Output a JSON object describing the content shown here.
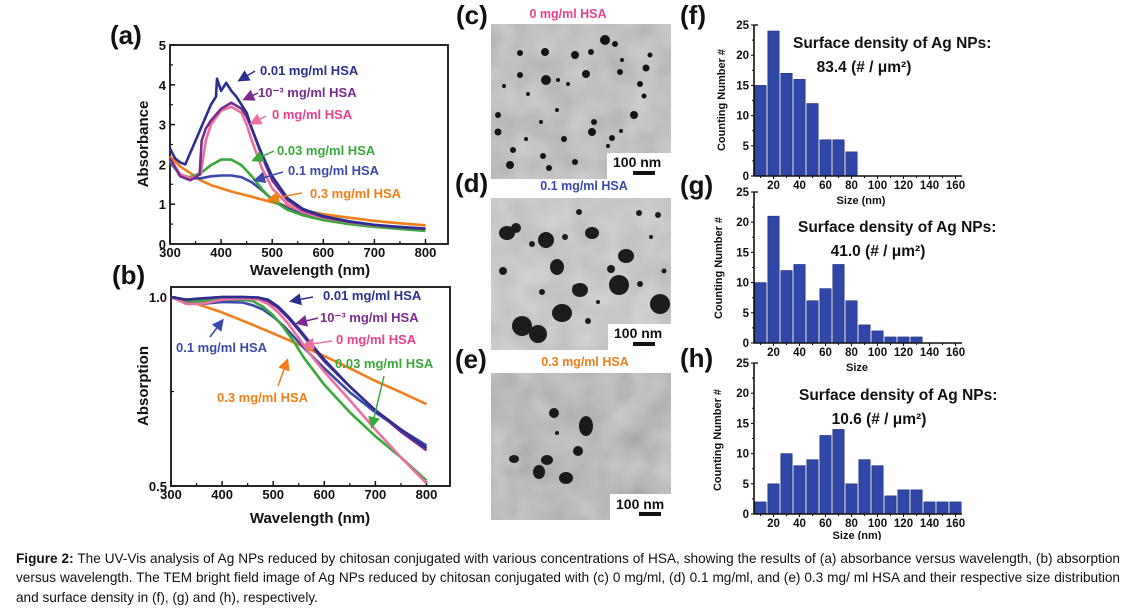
{
  "figure": {
    "caption_label": "Figure 2:",
    "caption_text": " The UV-Vis analysis of Ag NPs reduced by chitosan conjugated with various concentrations of HSA, showing the results of (a) absorbance versus wavelength, (b) absorption versus wavelength. The TEM bright field image of Ag NPs reduced by chitosan conjugated with (c) 0 mg/ml, (d) 0.1 mg/ml, and (e) 0.3 mg/ ml HSA and their respective size distribution and surface density in (f), (g) and (h), respectively."
  },
  "colors": {
    "c_0_01": "#2b2f8f",
    "c_1e_3": "#7a2d8f",
    "c_0": "#ee6fa0",
    "c_0_03": "#3aa83a",
    "c_0_1": "#3b4aa8",
    "c_0_3": "#f07f1a",
    "bar": "#2f47a6",
    "label_0": "#e8438a",
    "label_0_1": "#3b4aa8",
    "label_0_3": "#f07f1a"
  },
  "tem": [
    {
      "panel": "(c)",
      "title": "0 mg/ml HSA",
      "scalebar": "100 nm",
      "title_color": "#e8438a"
    },
    {
      "panel": "(d)",
      "title": "0.1 mg/ml HSA",
      "scalebar": "100 nm",
      "title_color": "#3b4aa8"
    },
    {
      "panel": "(e)",
      "title": "0.3 mg/ml HSA",
      "scalebar": "100 nm",
      "title_color": "#f07f1a"
    }
  ],
  "chart_data": [
    {
      "id": "a",
      "panel": "(a)",
      "type": "line",
      "xlabel": "Wavelength (nm)",
      "ylabel": "Absorbance",
      "xlim": [
        300,
        800
      ],
      "ylim": [
        0,
        5
      ],
      "xticks": [
        "300",
        "400",
        "500",
        "600",
        "700",
        "800"
      ],
      "yticks": [
        "0",
        "1",
        "2",
        "3",
        "4",
        "5"
      ],
      "series": [
        {
          "name": "0.3 mg/ml HSA",
          "label": "0.3 mg/ml HSA",
          "color_key": "c_0_3",
          "x": [
            300,
            320,
            340,
            360,
            380,
            400,
            420,
            450,
            500,
            550,
            600,
            650,
            700,
            750,
            800
          ],
          "y": [
            2.2,
            1.95,
            1.78,
            1.6,
            1.48,
            1.4,
            1.32,
            1.22,
            1.05,
            0.88,
            0.75,
            0.66,
            0.58,
            0.52,
            0.47
          ]
        },
        {
          "name": "0.1 mg/ml HSA",
          "label": "0.1 mg/ml HSA",
          "color_key": "c_0_1",
          "x": [
            300,
            320,
            340,
            360,
            380,
            400,
            420,
            440,
            460,
            480,
            500,
            530,
            560,
            600,
            650,
            700,
            750,
            800
          ],
          "y": [
            2.05,
            1.75,
            1.65,
            1.65,
            1.7,
            1.72,
            1.72,
            1.68,
            1.55,
            1.35,
            1.12,
            0.9,
            0.75,
            0.63,
            0.52,
            0.45,
            0.4,
            0.36
          ]
        },
        {
          "name": "0.03 mg/ml HSA",
          "label": "0.03 mg/ml HSA",
          "color_key": "c_0_03",
          "x": [
            300,
            320,
            340,
            360,
            380,
            400,
            420,
            440,
            460,
            480,
            500,
            530,
            560,
            600,
            650,
            700,
            750,
            800
          ],
          "y": [
            2.1,
            1.72,
            1.68,
            1.78,
            1.98,
            2.12,
            2.12,
            1.98,
            1.7,
            1.38,
            1.1,
            0.86,
            0.72,
            0.6,
            0.5,
            0.43,
            0.38,
            0.33
          ]
        },
        {
          "name": "0 mg/ml HSA",
          "label": "0 mg/ml HSA",
          "color_key": "c_0",
          "x": [
            300,
            320,
            340,
            360,
            370,
            380,
            400,
            420,
            440,
            450,
            460,
            480,
            500,
            530,
            560,
            600,
            650,
            700,
            750,
            800
          ],
          "y": [
            2.15,
            1.75,
            1.65,
            1.75,
            2.6,
            3.0,
            3.35,
            3.45,
            3.3,
            3.0,
            2.6,
            1.9,
            1.4,
            1.0,
            0.8,
            0.66,
            0.55,
            0.47,
            0.42,
            0.38
          ]
        },
        {
          "name": "10^-3 mg/ml HSA",
          "label": "10⁻³ mg/ml HSA",
          "color_key": "c_1e_3",
          "x": [
            300,
            320,
            340,
            358,
            362,
            370,
            380,
            400,
            420,
            440,
            450,
            460,
            480,
            500,
            530,
            560,
            600,
            650,
            700,
            750,
            800
          ],
          "y": [
            2.15,
            1.7,
            1.6,
            1.75,
            2.6,
            2.9,
            3.1,
            3.4,
            3.55,
            3.4,
            3.2,
            2.9,
            2.2,
            1.6,
            1.1,
            0.85,
            0.68,
            0.56,
            0.48,
            0.42,
            0.38
          ]
        },
        {
          "name": "0.01 mg/ml HSA",
          "label": "0.01 mg/ml HSA",
          "color_key": "c_0_01",
          "x": [
            300,
            310,
            320,
            330,
            340,
            350,
            360,
            370,
            380,
            390,
            392,
            400,
            410,
            420,
            430,
            440,
            450,
            460,
            480,
            500,
            530,
            560,
            600,
            650,
            700,
            750,
            800
          ],
          "y": [
            2.4,
            2.15,
            2.05,
            2.0,
            2.3,
            2.6,
            2.9,
            3.2,
            3.5,
            3.7,
            4.15,
            3.85,
            4.05,
            3.85,
            3.7,
            3.5,
            3.3,
            2.9,
            2.25,
            1.7,
            1.15,
            0.88,
            0.7,
            0.57,
            0.48,
            0.43,
            0.39
          ]
        }
      ],
      "annotations": [
        {
          "text": "0.01 mg/ml HSA",
          "color_key": "c_0_01"
        },
        {
          "text": "10⁻³ mg/ml HSA",
          "color_key": "c_1e_3"
        },
        {
          "text": "0 mg/ml HSA",
          "color_key": "c_0"
        },
        {
          "text": "0.03 mg/ml HSA",
          "color_key": "c_0_03"
        },
        {
          "text": "0.1 mg/ml HSA",
          "color_key": "c_0_1"
        },
        {
          "text": "0.3 mg/ml HSA",
          "color_key": "c_0_3"
        }
      ]
    },
    {
      "id": "b",
      "panel": "(b)",
      "type": "line",
      "xlabel": "Wavelength (nm)",
      "ylabel": "Absorption",
      "xlim": [
        300,
        800
      ],
      "ylim": [
        0.5,
        1.0
      ],
      "yscale": "log",
      "xticks": [
        "300",
        "400",
        "500",
        "600",
        "700",
        "800"
      ],
      "yticks": [
        "0.5",
        "1.0"
      ],
      "series": [
        {
          "name": "0.3 mg/ml HSA",
          "color_key": "c_0_3",
          "x": [
            300,
            350,
            400,
            450,
            500,
            550,
            600,
            650,
            700,
            750,
            800
          ],
          "y": [
            1.0,
            0.975,
            0.945,
            0.91,
            0.875,
            0.84,
            0.805,
            0.77,
            0.735,
            0.705,
            0.675
          ]
        },
        {
          "name": "0.1 mg/ml HSA",
          "color_key": "c_0_1",
          "x": [
            300,
            330,
            360,
            400,
            440,
            460,
            480,
            500,
            520,
            540,
            560,
            600,
            650,
            700,
            750,
            800
          ],
          "y": [
            1.0,
            0.98,
            0.975,
            0.982,
            0.98,
            0.97,
            0.955,
            0.93,
            0.9,
            0.865,
            0.83,
            0.77,
            0.705,
            0.655,
            0.615,
            0.58
          ]
        },
        {
          "name": "0.03 mg/ml HSA",
          "color_key": "c_0_03",
          "x": [
            300,
            330,
            360,
            400,
            440,
            460,
            480,
            500,
            520,
            540,
            560,
            600,
            650,
            700,
            750,
            800
          ],
          "y": [
            1.0,
            0.985,
            0.985,
            0.99,
            0.99,
            0.985,
            0.965,
            0.935,
            0.895,
            0.85,
            0.8,
            0.725,
            0.655,
            0.6,
            0.555,
            0.51
          ]
        },
        {
          "name": "0 mg/ml HSA",
          "color_key": "c_0",
          "x": [
            300,
            330,
            360,
            400,
            440,
            470,
            490,
            510,
            530,
            550,
            570,
            600,
            650,
            700,
            750,
            800
          ],
          "y": [
            1.0,
            0.975,
            0.975,
            0.99,
            0.995,
            0.99,
            0.975,
            0.945,
            0.905,
            0.86,
            0.815,
            0.76,
            0.685,
            0.615,
            0.555,
            0.505
          ]
        },
        {
          "name": "10^-3 mg/ml HSA",
          "color_key": "c_1e_3",
          "x": [
            300,
            330,
            360,
            400,
            440,
            470,
            490,
            510,
            530,
            550,
            570,
            600,
            650,
            700,
            750,
            800
          ],
          "y": [
            1.0,
            0.99,
            0.995,
            1.0,
            1.0,
            0.998,
            0.985,
            0.96,
            0.925,
            0.885,
            0.845,
            0.79,
            0.72,
            0.66,
            0.61,
            0.57
          ]
        },
        {
          "name": "0.01 mg/ml HSA",
          "color_key": "c_0_01",
          "x": [
            300,
            330,
            360,
            400,
            440,
            470,
            490,
            510,
            530,
            550,
            570,
            600,
            650,
            700,
            750,
            800
          ],
          "y": [
            1.0,
            0.99,
            0.995,
            1.0,
            1.0,
            0.998,
            0.99,
            0.965,
            0.93,
            0.89,
            0.85,
            0.795,
            0.72,
            0.66,
            0.615,
            0.575
          ]
        }
      ],
      "annotations": [
        {
          "text": "0.01 mg/ml HSA",
          "color_key": "c_0_01"
        },
        {
          "text": "10⁻³ mg/ml HSA",
          "color_key": "c_1e_3"
        },
        {
          "text": "0.1 mg/ml HSA",
          "color_key": "c_0_1"
        },
        {
          "text": "0 mg/ml HSA",
          "color_key": "c_0"
        },
        {
          "text": "0.03 mg/ml HSA",
          "color_key": "c_0_03"
        },
        {
          "text": "0.3 mg/ml HSA",
          "color_key": "c_0_3"
        }
      ]
    },
    {
      "id": "f",
      "panel": "(f)",
      "type": "bar",
      "xlabel": "Size (nm)",
      "ylabel": "Counting Number #",
      "xlim": [
        5,
        165
      ],
      "ylim": [
        0,
        25
      ],
      "xticks": [
        "20",
        "40",
        "60",
        "80",
        "100",
        "120",
        "140",
        "160"
      ],
      "yticks": [
        "0",
        "5",
        "10",
        "15",
        "20",
        "25"
      ],
      "categories": [
        10,
        20,
        30,
        40,
        50,
        60,
        70,
        80
      ],
      "values": [
        15,
        24,
        17,
        16,
        12,
        6,
        6,
        4
      ],
      "annotation_line1": "Surface density of Ag NPs:",
      "annotation_line2": "83.4 (# / μm²)"
    },
    {
      "id": "g",
      "panel": "(g)",
      "type": "bar",
      "xlabel": "Size",
      "ylabel": "Counting Number #",
      "xlim": [
        5,
        165
      ],
      "ylim": [
        0,
        25
      ],
      "xticks": [
        "20",
        "40",
        "60",
        "80",
        "100",
        "120",
        "140",
        "160"
      ],
      "yticks": [
        "0",
        "5",
        "10",
        "15",
        "20",
        "25"
      ],
      "categories": [
        10,
        20,
        30,
        40,
        50,
        60,
        70,
        80,
        90,
        100,
        110,
        120,
        130
      ],
      "values": [
        10,
        21,
        12,
        13,
        7,
        9,
        13,
        7,
        3,
        2,
        1,
        1,
        1
      ],
      "annotation_line1": "Surface density of Ag NPs:",
      "annotation_line2": "41.0 (# / μm²)"
    },
    {
      "id": "h",
      "panel": "(h)",
      "type": "bar",
      "xlabel": "Size (nm)",
      "ylabel": "Counting Number #",
      "xlim": [
        5,
        165
      ],
      "ylim": [
        0,
        25
      ],
      "xticks": [
        "20",
        "40",
        "60",
        "80",
        "100",
        "120",
        "140",
        "160"
      ],
      "yticks": [
        "0",
        "5",
        "10",
        "15",
        "20",
        "25"
      ],
      "categories": [
        10,
        20,
        30,
        40,
        50,
        60,
        70,
        80,
        90,
        100,
        110,
        120,
        130,
        140,
        150,
        160
      ],
      "values": [
        2,
        5,
        10,
        8,
        9,
        13,
        14,
        5,
        9,
        8,
        3,
        4,
        4,
        2,
        2,
        2
      ],
      "annotation_line1": "Surface density of Ag NPs:",
      "annotation_line2": "10.6 (# / μm²)"
    }
  ]
}
